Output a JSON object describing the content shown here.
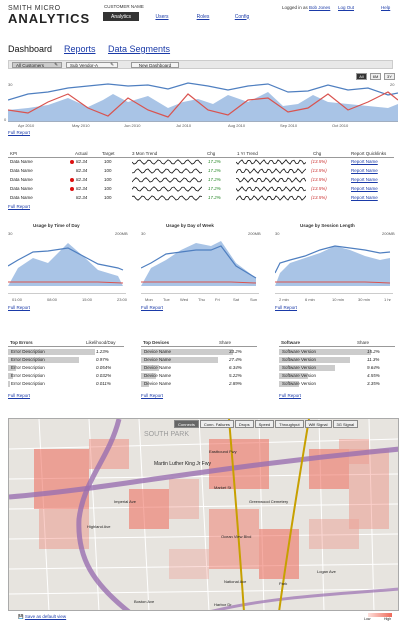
{
  "brand": {
    "line1": "SMITH MICRO",
    "line2": "ANALYTICS"
  },
  "header": {
    "customer_name": "CUSTOMER NAME",
    "nav": [
      "Analytics",
      "Users",
      "Roles",
      "Config"
    ],
    "logged_in_as": "Logged in as",
    "user": "Bob Jones",
    "logout": "Log Out",
    "help": "Help"
  },
  "tabs": [
    "Dashboard",
    "Reports",
    "Data Segments"
  ],
  "filters": {
    "all_customers": "All Customers",
    "sub_vendor": "Sub Vendor-A",
    "new_dashboard": "New Dashboard"
  },
  "range_buttons": [
    "All",
    "6M",
    "3Y"
  ],
  "top_chart": {
    "y_top": "30",
    "y_bottom": "0",
    "y_right": "20",
    "months": [
      "Apr 2010",
      "May 2010",
      "Jun 2010",
      "Jul 2010",
      "Aug 2010",
      "Sep 2010",
      "Oct 2010"
    ],
    "full_report": "Full Report"
  },
  "kpi": {
    "headers": [
      "KPI",
      "Actual",
      "Target",
      "3 Mon Trend",
      "Chg",
      "1 Yr Trend",
      "Chg",
      "Report Quicklinks"
    ],
    "rows": [
      {
        "name": "Data Name",
        "alert": true,
        "actual": "82.34",
        "target": "100",
        "chg3": "17.2%",
        "chg1y": "(13.5%)",
        "link": "Report Name"
      },
      {
        "name": "Data Name",
        "alert": false,
        "actual": "82.34",
        "target": "100",
        "chg3": "17.2%",
        "chg1y": "(13.5%)",
        "link": "Report Name"
      },
      {
        "name": "Data Name",
        "alert": true,
        "actual": "82.34",
        "target": "100",
        "chg3": "17.2%",
        "chg1y": "(13.5%)",
        "link": "Report Name"
      },
      {
        "name": "Data Name",
        "alert": true,
        "actual": "82.34",
        "target": "100",
        "chg3": "17.2%",
        "chg1y": "(13.5%)",
        "link": "Report Name"
      },
      {
        "name": "Data Name",
        "alert": false,
        "actual": "82.34",
        "target": "100",
        "chg3": "17.2%",
        "chg1y": "(13.5%)",
        "link": "Report Name"
      }
    ],
    "full_report": "Full Report"
  },
  "small_charts": [
    {
      "title": "Usage by Time of Day",
      "y_left": "30",
      "y_right": "200MB",
      "ticks": [
        "01:00",
        "08:00",
        "15:00",
        "23:00"
      ],
      "full_report": "Full Report"
    },
    {
      "title": "Usage by Day of Week",
      "y_left": "30",
      "y_right": "200MB",
      "ticks": [
        "Mon",
        "Tue",
        "Wed",
        "Thu",
        "Fri",
        "Sat",
        "Sun"
      ],
      "full_report": "Full Report"
    },
    {
      "title": "Usage by Session Length",
      "y_left": "30",
      "y_right": "200MB",
      "ticks": [
        "2 min",
        "6 min",
        "10 min",
        "30 min",
        "1 hr"
      ],
      "full_report": "Full Report"
    }
  ],
  "top_errors": {
    "headers": [
      "Top Errors",
      "Likelihood/Day"
    ],
    "rows": [
      {
        "name": "Error Description",
        "value": "1.23%",
        "pct": 0.85
      },
      {
        "name": "Error Description",
        "value": "0.97%",
        "pct": 0.7
      },
      {
        "name": "Error Description",
        "value": "0.054%",
        "pct": 0.08
      },
      {
        "name": "Error Description",
        "value": "0.032%",
        "pct": 0.05
      },
      {
        "name": "Error Description",
        "value": "0.011%",
        "pct": 0.02
      }
    ],
    "full_report": "Full Report"
  },
  "top_devices": {
    "headers": [
      "Top Devices",
      "Share"
    ],
    "rows": [
      {
        "name": "Device Name",
        "value": "33.2%",
        "pct": 0.9
      },
      {
        "name": "Device Name",
        "value": "27.4%",
        "pct": 0.75
      },
      {
        "name": "Device Name",
        "value": "6.34%",
        "pct": 0.18
      },
      {
        "name": "Device Name",
        "value": "5.22%",
        "pct": 0.15
      },
      {
        "name": "Device Name",
        "value": "2.89%",
        "pct": 0.08
      }
    ],
    "full_report": "Full Report"
  },
  "software": {
    "headers": [
      "Software",
      "Share"
    ],
    "rows": [
      {
        "name": "Software Version",
        "value": "15.2%",
        "pct": 0.9
      },
      {
        "name": "Software Version",
        "value": "11.3%",
        "pct": 0.7
      },
      {
        "name": "Software Version",
        "value": "9.64%",
        "pct": 0.55
      },
      {
        "name": "Software Version",
        "value": "4.55%",
        "pct": 0.28
      },
      {
        "name": "Software Version",
        "value": "3.35%",
        "pct": 0.2
      }
    ],
    "full_report": "Full Report"
  },
  "map": {
    "tabs": [
      "Connects",
      "Conn. Failures",
      "Drops",
      "Speed",
      "Throughput",
      "Wifi Signal",
      "3G Signal"
    ],
    "labels": {
      "south_park": "SOUTH PARK",
      "mlk": "Martin Luther King Jr Fwy",
      "imperial": "Imperial Ave",
      "market": "Market St",
      "ocean_view": "Ocean View Blvd",
      "national": "National Ave",
      "logan": "Logan Ave",
      "boston": "Boston Ave",
      "highland": "Highland Ave",
      "eastbound": "Eastbound Fwy",
      "harbor": "Harbor Dr",
      "park": "Park",
      "greenwood": "Greenwood Cemetery"
    },
    "save_default": "Save as default view",
    "legend_low": "Low",
    "legend_high": "High"
  },
  "colors": {
    "area": "#a9c4e6",
    "line_blue": "#4f7fc0",
    "line_red": "#d9534f",
    "heat": "#ef6a5a"
  }
}
